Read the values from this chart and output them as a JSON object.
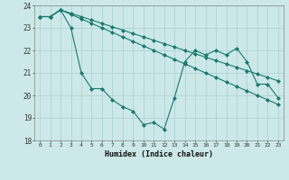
{
  "xlabel": "Humidex (Indice chaleur)",
  "background_color": "#cce8e8",
  "grid_color": "#b0d4d4",
  "line_color": "#1a7a6e",
  "ylim": [
    18,
    24
  ],
  "yticks": [
    18,
    19,
    20,
    21,
    22,
    23,
    24
  ],
  "xticks": [
    0,
    1,
    2,
    3,
    4,
    5,
    6,
    7,
    8,
    9,
    10,
    11,
    12,
    13,
    14,
    15,
    16,
    17,
    18,
    19,
    20,
    21,
    22,
    23
  ],
  "y_line1": [
    23.5,
    23.5,
    23.8,
    23.0,
    21.0,
    20.3,
    20.3,
    19.8,
    19.5,
    19.3,
    18.7,
    18.8,
    18.5,
    19.9,
    21.5,
    22.0,
    21.8,
    22.0,
    21.8,
    22.1,
    21.5,
    20.5,
    20.5,
    19.9
  ],
  "y_line2": [
    23.5,
    23.5,
    23.8,
    23.6,
    23.4,
    23.2,
    23.0,
    22.8,
    22.6,
    22.4,
    22.2,
    22.0,
    21.8,
    21.6,
    21.4,
    21.2,
    21.0,
    20.8,
    20.6,
    20.4,
    20.2,
    20.0,
    19.8,
    19.6
  ],
  "y_line3": [
    23.5,
    23.5,
    23.8,
    23.65,
    23.5,
    23.35,
    23.2,
    23.05,
    22.9,
    22.75,
    22.6,
    22.45,
    22.3,
    22.15,
    22.0,
    21.85,
    21.7,
    21.55,
    21.4,
    21.25,
    21.1,
    20.95,
    20.8,
    20.65
  ]
}
